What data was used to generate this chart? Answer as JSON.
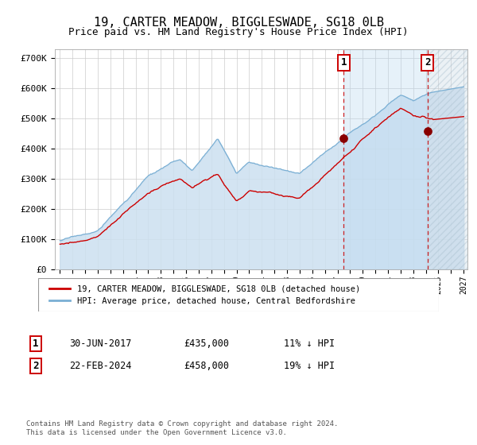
{
  "title": "19, CARTER MEADOW, BIGGLESWADE, SG18 0LB",
  "subtitle": "Price paid vs. HM Land Registry's House Price Index (HPI)",
  "legend_line1": "19, CARTER MEADOW, BIGGLESWADE, SG18 0LB (detached house)",
  "legend_line2": "HPI: Average price, detached house, Central Bedfordshire",
  "annotation1_date": "30-JUN-2017",
  "annotation1_price": "£435,000",
  "annotation1_hpi": "11% ↓ HPI",
  "annotation2_date": "22-FEB-2024",
  "annotation2_price": "£458,000",
  "annotation2_hpi": "19% ↓ HPI",
  "footer": "Contains HM Land Registry data © Crown copyright and database right 2024.\nThis data is licensed under the Open Government Licence v3.0.",
  "hpi_line_color": "#7aafd4",
  "hpi_fill_color": "#cce0f0",
  "price_color": "#cc0000",
  "sale1_year": 2017.5,
  "sale1_price": 435000,
  "sale2_year": 2024.12,
  "sale2_price": 458000,
  "shade_color": "#d6eaf8",
  "hatch_color": "#b8cdd8",
  "title_fontsize": 11,
  "subtitle_fontsize": 9
}
